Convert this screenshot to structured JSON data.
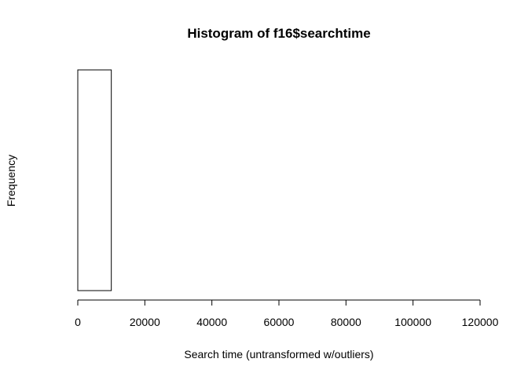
{
  "chart_data": {
    "type": "bar",
    "title": "Histogram of f16$searchtime",
    "xlabel": "Search time (untransformed w/outliers)",
    "ylabel": "Frequency",
    "xlim": [
      0,
      120000
    ],
    "x_ticks": [
      "0",
      "20000",
      "40000",
      "60000",
      "80000",
      "100000",
      "120000"
    ],
    "x_tick_values": [
      0,
      20000,
      40000,
      60000,
      80000,
      100000,
      120000
    ],
    "bins": [
      {
        "start": 0,
        "end": 10000,
        "relative_height": 1.0
      },
      {
        "start": 10000,
        "end": 20000,
        "relative_height": 0
      },
      {
        "start": 20000,
        "end": 30000,
        "relative_height": 0
      },
      {
        "start": 30000,
        "end": 40000,
        "relative_height": 0
      },
      {
        "start": 40000,
        "end": 50000,
        "relative_height": 0
      },
      {
        "start": 50000,
        "end": 60000,
        "relative_height": 0
      },
      {
        "start": 60000,
        "end": 70000,
        "relative_height": 0
      },
      {
        "start": 70000,
        "end": 80000,
        "relative_height": 0
      },
      {
        "start": 80000,
        "end": 90000,
        "relative_height": 0
      },
      {
        "start": 90000,
        "end": 100000,
        "relative_height": 0
      },
      {
        "start": 100000,
        "end": 110000,
        "relative_height": 0
      },
      {
        "start": 110000,
        "end": 120000,
        "relative_height": 0
      }
    ],
    "y_ticks_shown": false,
    "grid": false,
    "legend": "none",
    "bar_fill": "#ffffff",
    "bar_stroke": "#000000"
  }
}
